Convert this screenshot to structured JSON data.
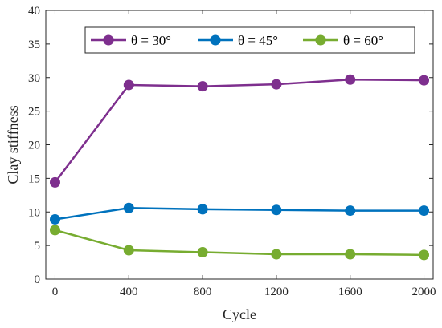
{
  "chart_data": {
    "type": "line",
    "xlabel": "Cycle",
    "ylabel": "Clay stiffness",
    "x": [
      0,
      400,
      800,
      1200,
      1600,
      2000
    ],
    "xlim": [
      -50,
      2050
    ],
    "ylim": [
      0,
      40
    ],
    "xticks": [
      "0",
      "400",
      "800",
      "1200",
      "1600",
      "2000"
    ],
    "yticks": [
      "0",
      "5",
      "10",
      "15",
      "20",
      "25",
      "30",
      "35",
      "40"
    ],
    "legend_position": "top-right",
    "grid": false,
    "series": [
      {
        "name": "θ = 30°",
        "color": "#7E2F8E",
        "values": [
          14.4,
          28.9,
          28.7,
          29.0,
          29.7,
          29.6
        ]
      },
      {
        "name": "θ = 45°",
        "color": "#0072BD",
        "values": [
          8.9,
          10.6,
          10.4,
          10.3,
          10.2,
          10.2
        ]
      },
      {
        "name": "θ = 60°",
        "color": "#77AC30",
        "values": [
          7.3,
          4.3,
          4.0,
          3.7,
          3.7,
          3.6
        ]
      }
    ]
  }
}
